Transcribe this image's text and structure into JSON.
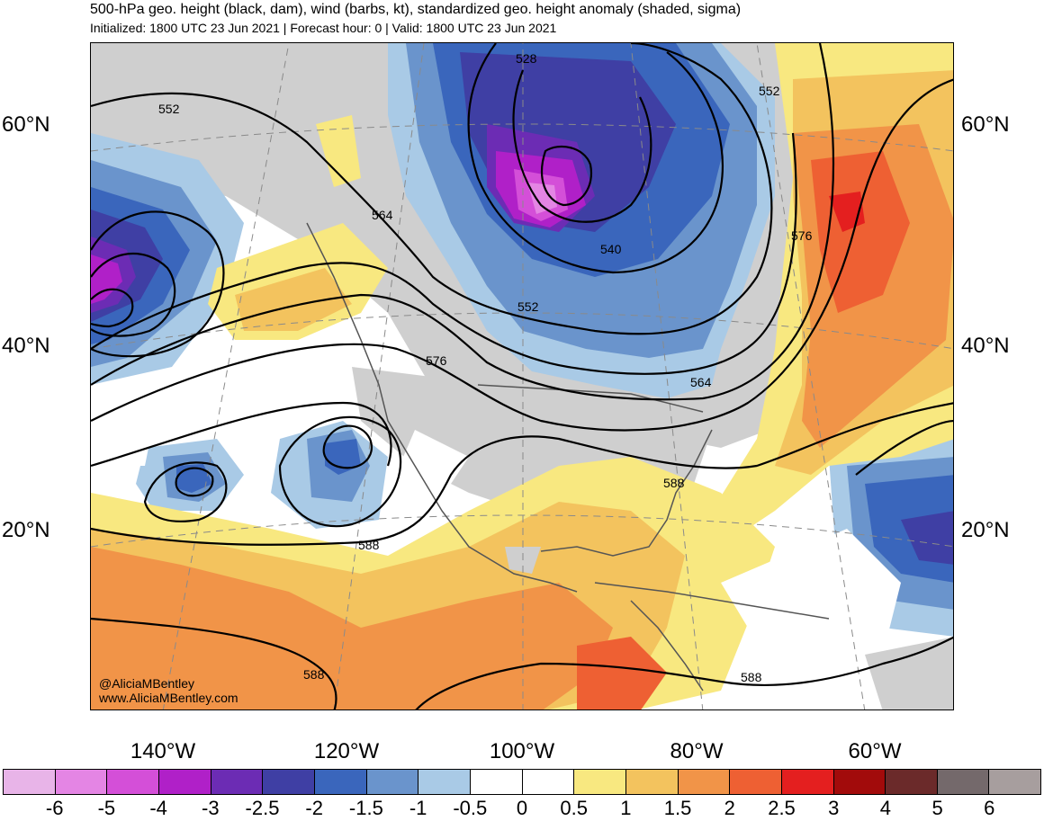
{
  "title": "500-hPa geo. height (black, dam), wind (barbs, kt), standardized geo. height anomaly (shaded, sigma)",
  "subtitle": "Initialized: 1800 UTC 23 Jun 2021 | Forecast hour: 0 | Valid: 1800 UTC 23 Jun 2021",
  "lat_labels": [
    "60°N",
    "40°N",
    "20°N"
  ],
  "lon_labels": [
    "140°W",
    "120°W",
    "100°W",
    "80°W",
    "60°W"
  ],
  "contour_labels": [
    "552",
    "528",
    "552",
    "564",
    "540",
    "552",
    "576",
    "576",
    "564",
    "588",
    "588",
    "588",
    "588"
  ],
  "credit": {
    "handle": "@AliciaMBentley",
    "website": "www.AliciaMBentley.com"
  },
  "colorbar": {
    "labels": [
      "-6",
      "-5",
      "-4",
      "-3",
      "-2.5",
      "-2",
      "-1.5",
      "-1",
      "-0.5",
      "0",
      "0.5",
      "1",
      "1.5",
      "2",
      "2.5",
      "3",
      "4",
      "5",
      "6"
    ],
    "colors": [
      "#e8b4e8",
      "#e485e4",
      "#d44fd8",
      "#b020c8",
      "#6c2cb4",
      "#3f3fa4",
      "#3a66bc",
      "#6a94cc",
      "#a9cae6",
      "#ffffff",
      "#ffffff",
      "#f8e880",
      "#f3c35e",
      "#f19448",
      "#ee6033",
      "#e41f1f",
      "#a20b0b",
      "#6b2a2a",
      "#74696b",
      "#a79e9e"
    ]
  }
}
